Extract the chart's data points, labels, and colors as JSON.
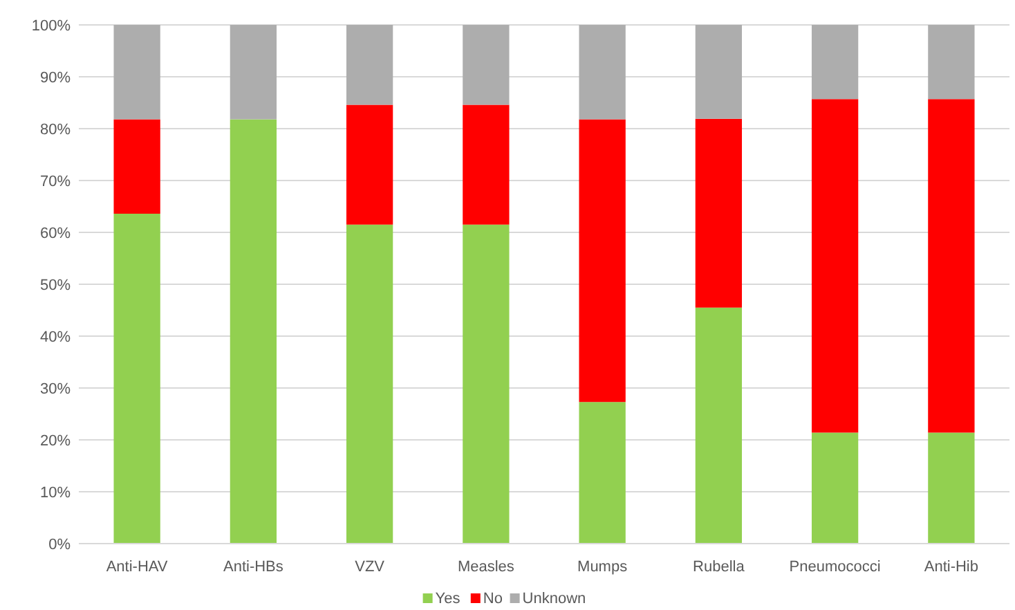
{
  "chart_data": {
    "type": "bar",
    "stacked": true,
    "categories": [
      "Anti-HAV",
      "Anti-HBs",
      "VZV",
      "Measles",
      "Mumps",
      "Rubella",
      "Pneumococci",
      "Anti-Hib"
    ],
    "series": [
      {
        "name": "Yes",
        "color": "#92d050",
        "values": [
          63.6,
          81.8,
          61.5,
          61.5,
          27.3,
          45.5,
          21.4,
          21.4
        ]
      },
      {
        "name": "No",
        "color": "#ff0000",
        "values": [
          18.2,
          0,
          23.1,
          23.1,
          54.5,
          36.4,
          64.3,
          64.3
        ]
      },
      {
        "name": "Unknown",
        "color": "#adadad",
        "values": [
          18.2,
          18.2,
          15.4,
          15.4,
          18.2,
          18.1,
          14.3,
          14.3
        ]
      }
    ],
    "ylim": [
      0,
      100
    ],
    "yticks": [
      {
        "value": 0,
        "label": "0%"
      },
      {
        "value": 10,
        "label": "10%"
      },
      {
        "value": 20,
        "label": "20%"
      },
      {
        "value": 30,
        "label": "30%"
      },
      {
        "value": 40,
        "label": "40%"
      },
      {
        "value": 50,
        "label": "50%"
      },
      {
        "value": 60,
        "label": "60%"
      },
      {
        "value": 70,
        "label": "70%"
      },
      {
        "value": 80,
        "label": "80%"
      },
      {
        "value": 90,
        "label": "90%"
      },
      {
        "value": 100,
        "label": "100%"
      }
    ],
    "grid": "y",
    "legend": "bottom"
  }
}
